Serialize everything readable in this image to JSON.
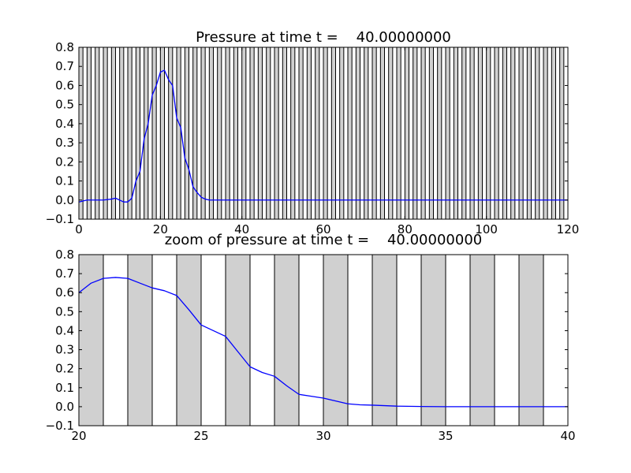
{
  "chart_data": [
    {
      "type": "line",
      "title": "Pressure at time t =    40.00000000",
      "xlabel": "",
      "ylabel": "",
      "xlim": [
        0,
        120
      ],
      "ylim": [
        -0.1,
        0.8
      ],
      "xticks": [
        "0",
        "20",
        "40",
        "60",
        "80",
        "100",
        "120"
      ],
      "xtick_values": [
        0,
        20,
        40,
        60,
        80,
        100,
        120
      ],
      "yticks": [
        "−0.1",
        "0.0",
        "0.1",
        "0.2",
        "0.3",
        "0.4",
        "0.5",
        "0.6",
        "0.7",
        "0.8"
      ],
      "ytick_values": [
        -0.1,
        0,
        0.1,
        0.2,
        0.3,
        0.4,
        0.5,
        0.6,
        0.7,
        0.8
      ],
      "grid": false,
      "background_bands": {
        "period": 2,
        "band_width": 1,
        "start": 0,
        "end": 120,
        "fill_color": "#d0d0d0"
      },
      "series": [
        {
          "color": "#0000ff",
          "x": [
            0,
            2,
            4,
            6,
            8,
            9,
            10,
            11,
            12,
            13,
            14,
            15,
            16,
            17,
            18,
            19,
            20,
            21,
            22,
            23,
            24,
            25,
            26,
            27,
            28,
            29,
            30,
            31,
            32,
            33,
            34,
            35,
            40,
            60,
            80,
            100,
            120
          ],
          "y": [
            -0.01,
            0.0,
            0.0,
            0.0,
            0.005,
            0.01,
            0.0,
            -0.01,
            -0.01,
            0.01,
            0.1,
            0.15,
            0.32,
            0.4,
            0.55,
            0.6,
            0.67,
            0.68,
            0.63,
            0.6,
            0.43,
            0.38,
            0.22,
            0.16,
            0.07,
            0.04,
            0.015,
            0.005,
            0.0,
            0.0,
            0.0,
            0.0,
            0.0,
            0.0,
            0.0,
            0.0,
            0.0
          ]
        }
      ]
    },
    {
      "type": "line",
      "title": "zoom of pressure at time t =    40.00000000",
      "xlabel": "",
      "ylabel": "",
      "xlim": [
        20,
        40
      ],
      "ylim": [
        -0.1,
        0.8
      ],
      "xticks": [
        "20",
        "25",
        "30",
        "35",
        "40"
      ],
      "xtick_values": [
        20,
        25,
        30,
        35,
        40
      ],
      "yticks": [
        "−0.1",
        "0.0",
        "0.1",
        "0.2",
        "0.3",
        "0.4",
        "0.5",
        "0.6",
        "0.7",
        "0.8"
      ],
      "ytick_values": [
        -0.1,
        0,
        0.1,
        0.2,
        0.3,
        0.4,
        0.5,
        0.6,
        0.7,
        0.8
      ],
      "grid": false,
      "background_bands": {
        "period": 2,
        "band_width": 1,
        "start": 20,
        "end": 40,
        "fill_color": "#d0d0d0"
      },
      "series": [
        {
          "color": "#0000ff",
          "x": [
            20,
            20.5,
            21,
            21.5,
            22,
            22.5,
            23,
            23.5,
            24,
            24.5,
            25,
            25.5,
            26,
            26.5,
            27,
            27.5,
            28,
            28.5,
            29,
            29.5,
            30,
            30.5,
            31,
            31.5,
            32,
            33,
            34,
            35,
            36,
            37,
            38,
            39,
            40
          ],
          "y": [
            0.6,
            0.65,
            0.675,
            0.68,
            0.675,
            0.65,
            0.625,
            0.61,
            0.585,
            0.51,
            0.43,
            0.4,
            0.37,
            0.29,
            0.21,
            0.18,
            0.16,
            0.11,
            0.065,
            0.055,
            0.045,
            0.03,
            0.015,
            0.01,
            0.008,
            0.003,
            0.001,
            0.0,
            0.0,
            0.0,
            0.0,
            0.0,
            0.0
          ]
        }
      ]
    }
  ]
}
